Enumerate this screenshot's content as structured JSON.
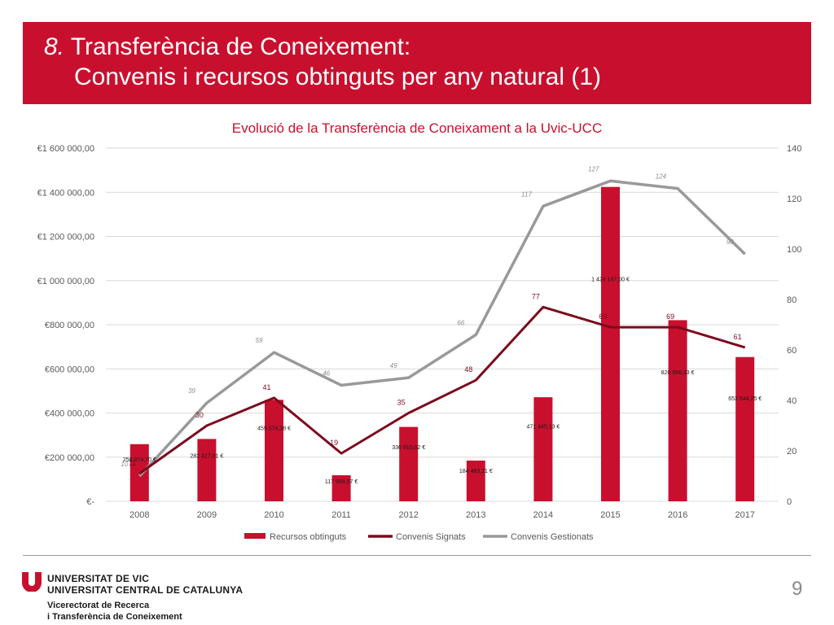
{
  "header": {
    "title_number": "8.",
    "title_line1": "Transferència de Coneixement:",
    "title_line2": "Convenis i recursos obtinguts per any natural (1)"
  },
  "chart_data": {
    "type": "bar",
    "title": "Evolució de la Transferència de Coneixament a la Uvic-UCC",
    "categories": [
      "2008",
      "2009",
      "2010",
      "2011",
      "2012",
      "2013",
      "2014",
      "2015",
      "2016",
      "2017"
    ],
    "bar_series": {
      "name": "Recursos obtinguts",
      "values": [
        258874.7,
        282417.01,
        459574.38,
        117959.57,
        336910.02,
        184483.21,
        471445.13,
        1424147.0,
        820566.33,
        653544.25
      ],
      "labels": [
        "258 874,70 €",
        "282 417,01 €",
        "459 574,38 €",
        "117 959,57 €",
        "336 910,02 €",
        "184 483,21 €",
        "471 445,13 €",
        "1 424 147,00 €",
        "820 566,33 €",
        "653 544,25 €"
      ],
      "color": "#c8102e"
    },
    "line_series": [
      {
        "name": "Convenis Signats",
        "values": [
          11,
          30,
          41,
          19,
          35,
          48,
          77,
          69,
          69,
          61
        ],
        "labels": [
          "11",
          "30",
          "41",
          "19",
          "35",
          "48",
          "77",
          "69",
          "69",
          "61"
        ],
        "color": "#7b0b1e"
      },
      {
        "name": "Convenis Gestionats",
        "values": [
          10,
          39,
          59,
          46,
          49,
          66,
          117,
          127,
          124,
          98
        ],
        "labels": [
          "10",
          "39",
          "59",
          "46",
          "49",
          "66",
          "117",
          "127",
          "124",
          "98"
        ],
        "color": "#999999"
      }
    ],
    "y_left": {
      "range": [
        0,
        1600000
      ],
      "ticks": [
        0,
        200000,
        400000,
        600000,
        800000,
        1000000,
        1200000,
        1400000,
        1600000
      ],
      "tick_labels": [
        "€-",
        "€200 000,00",
        "€400 000,00",
        "€600 000,00",
        "€800 000,00",
        "€1 000 000,00",
        "€1 200 000,00",
        "€1 400 000,00",
        "€1 600 000,00"
      ]
    },
    "y_right": {
      "range": [
        0,
        140
      ],
      "ticks": [
        0,
        20,
        40,
        60,
        80,
        100,
        120,
        140
      ],
      "tick_labels": [
        "0",
        "20",
        "40",
        "60",
        "80",
        "100",
        "120",
        "140"
      ]
    },
    "grid": true,
    "legend_position": "bottom"
  },
  "footer": {
    "university_line1": "UNIVERSITAT DE VIC",
    "university_line2": "UNIVERSITAT CENTRAL DE CATALUNYA",
    "vice_line1": "Vicerectorat de Recerca",
    "vice_line2": "i Transferència de Coneixement",
    "page_number": "9",
    "logo_color": "#c8102e"
  }
}
